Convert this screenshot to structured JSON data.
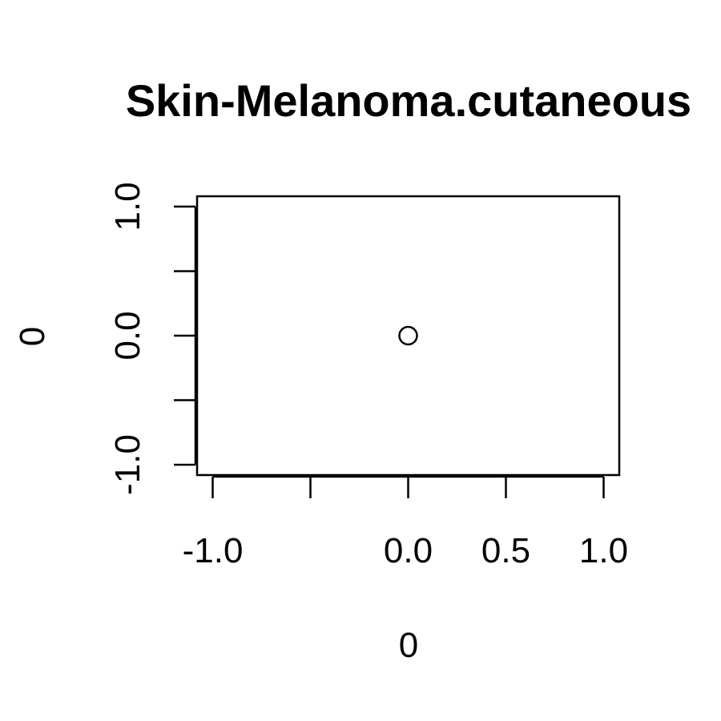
{
  "chart_data": {
    "type": "scatter",
    "title": "Skin-Melanoma.cutaneous",
    "xlabel": "0",
    "ylabel": "0",
    "xlim": [
      -1.08,
      1.08
    ],
    "ylim": [
      -1.08,
      1.08
    ],
    "x_ticks": [
      -1.0,
      -0.5,
      0.0,
      0.5,
      1.0
    ],
    "x_tick_labels": [
      "-1.0",
      "",
      "0.0",
      "0.5",
      "1.0"
    ],
    "y_ticks": [
      -1.0,
      -0.5,
      0.0,
      0.5,
      1.0
    ],
    "y_tick_labels": [
      "-1.0",
      "",
      "0.0",
      "",
      "1.0"
    ],
    "points": [
      {
        "x": 0,
        "y": 0
      }
    ],
    "marker": "open-circle",
    "grid": false,
    "legend": "none"
  }
}
